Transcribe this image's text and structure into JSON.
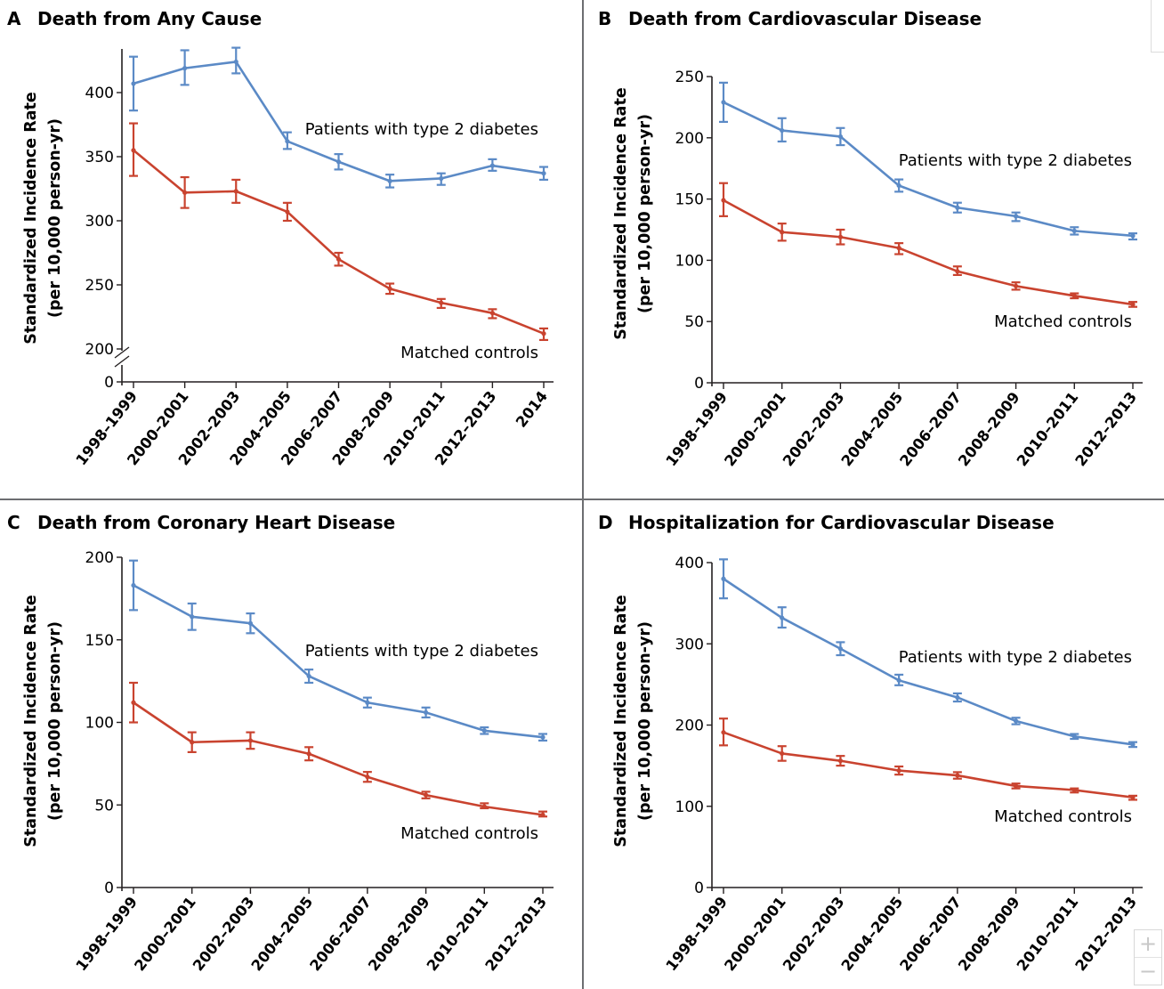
{
  "colors": {
    "diabetes": "#5b8ac6",
    "controls": "#c9432f",
    "axis": "#231f20",
    "divider": "#6d6e71"
  },
  "zoom": {
    "in_label": "+",
    "out_label": "−"
  },
  "chart_data": [
    {
      "id": "A",
      "type": "line",
      "letter": "A",
      "title": "Death from Any Cause",
      "ylabel_line1": "Standardized Incidence Rate",
      "ylabel_line2": "(per 10,000 person-yr)",
      "ylim": [
        200,
        430
      ],
      "y_break": true,
      "yticks": [
        0,
        200,
        250,
        300,
        350,
        400
      ],
      "categories": [
        "1998–1999",
        "2000–2001",
        "2002–2003",
        "2004–2005",
        "2006–2007",
        "2008–2009",
        "2010–2011",
        "2012–2013",
        "2014"
      ],
      "series": [
        {
          "name": "Patients with type 2 diabetes",
          "key": "diabetes",
          "values": [
            407,
            419,
            424,
            362,
            346,
            331,
            333,
            343,
            337
          ],
          "lower": [
            386,
            406,
            415,
            356,
            340,
            326,
            328,
            339,
            332
          ],
          "upper": [
            428,
            433,
            435,
            369,
            352,
            336,
            337,
            348,
            342
          ]
        },
        {
          "name": "Matched controls",
          "key": "controls",
          "values": [
            355,
            322,
            323,
            307,
            270,
            247,
            236,
            228,
            212
          ],
          "lower": [
            335,
            310,
            314,
            300,
            265,
            243,
            232,
            224,
            207
          ],
          "upper": [
            376,
            334,
            332,
            314,
            275,
            251,
            239,
            231,
            216
          ]
        }
      ]
    },
    {
      "id": "B",
      "type": "line",
      "letter": "B",
      "title": "Death from Cardiovascular Disease",
      "ylabel_line1": "Standardized Incidence Rate",
      "ylabel_line2": "(per 10,000 person-yr)",
      "ylim": [
        0,
        250
      ],
      "yticks": [
        0,
        50,
        100,
        150,
        200,
        250
      ],
      "categories": [
        "1998–1999",
        "2000–2001",
        "2002–2003",
        "2004–2005",
        "2006–2007",
        "2008–2009",
        "2010–2011",
        "2012–2013"
      ],
      "series": [
        {
          "name": "Patients with type 2 diabetes",
          "key": "diabetes",
          "values": [
            229,
            206,
            201,
            161,
            143,
            136,
            124,
            120
          ],
          "lower": [
            213,
            197,
            194,
            156,
            139,
            132,
            121,
            117
          ],
          "upper": [
            245,
            216,
            208,
            166,
            147,
            139,
            127,
            122
          ]
        },
        {
          "name": "Matched controls",
          "key": "controls",
          "values": [
            149,
            123,
            119,
            110,
            91,
            79,
            71,
            64
          ],
          "lower": [
            136,
            116,
            113,
            105,
            88,
            76,
            69,
            62
          ],
          "upper": [
            163,
            130,
            125,
            114,
            95,
            82,
            73,
            66
          ]
        }
      ]
    },
    {
      "id": "C",
      "type": "line",
      "letter": "C",
      "title": "Death from Coronary Heart Disease",
      "ylabel_line1": "Standardized Incidence Rate",
      "ylabel_line2": "(per 10,000 person-yr)",
      "ylim": [
        0,
        200
      ],
      "yticks": [
        0,
        50,
        100,
        150,
        200
      ],
      "categories": [
        "1998–1999",
        "2000–2001",
        "2002–2003",
        "2004–2005",
        "2006–2007",
        "2008–2009",
        "2010–2011",
        "2012–2013"
      ],
      "series": [
        {
          "name": "Patients with type 2 diabetes",
          "key": "diabetes",
          "values": [
            183,
            164,
            160,
            128,
            112,
            106,
            95,
            91
          ],
          "lower": [
            168,
            156,
            154,
            124,
            109,
            103,
            93,
            89
          ],
          "upper": [
            198,
            172,
            166,
            132,
            115,
            109,
            97,
            93
          ]
        },
        {
          "name": "Matched controls",
          "key": "controls",
          "values": [
            112,
            88,
            89,
            81,
            67,
            56,
            49,
            44
          ],
          "lower": [
            100,
            82,
            84,
            77,
            64,
            54,
            48,
            43
          ],
          "upper": [
            124,
            94,
            94,
            85,
            70,
            58,
            51,
            46
          ]
        }
      ]
    },
    {
      "id": "D",
      "type": "line",
      "letter": "D",
      "title": "Hospitalization for Cardiovascular Disease",
      "ylabel_line1": "Standardized Incidence Rate",
      "ylabel_line2": "(per 10,000 person-yr)",
      "ylim": [
        0,
        400
      ],
      "yticks": [
        0,
        100,
        200,
        300,
        400
      ],
      "categories": [
        "1998–1999",
        "2000–2001",
        "2002–2003",
        "2004–2005",
        "2006–2007",
        "2008–2009",
        "2010–2011",
        "2012–2013"
      ],
      "series": [
        {
          "name": "Patients with type 2 diabetes",
          "key": "diabetes",
          "values": [
            380,
            332,
            294,
            255,
            234,
            205,
            186,
            176
          ],
          "lower": [
            356,
            320,
            286,
            249,
            229,
            201,
            183,
            173
          ],
          "upper": [
            404,
            345,
            302,
            262,
            239,
            209,
            189,
            179
          ]
        },
        {
          "name": "Matched controls",
          "key": "controls",
          "values": [
            191,
            165,
            156,
            144,
            138,
            125,
            120,
            111
          ],
          "lower": [
            175,
            156,
            150,
            139,
            134,
            122,
            117,
            108
          ],
          "upper": [
            208,
            174,
            162,
            149,
            142,
            128,
            122,
            113
          ]
        }
      ]
    }
  ]
}
